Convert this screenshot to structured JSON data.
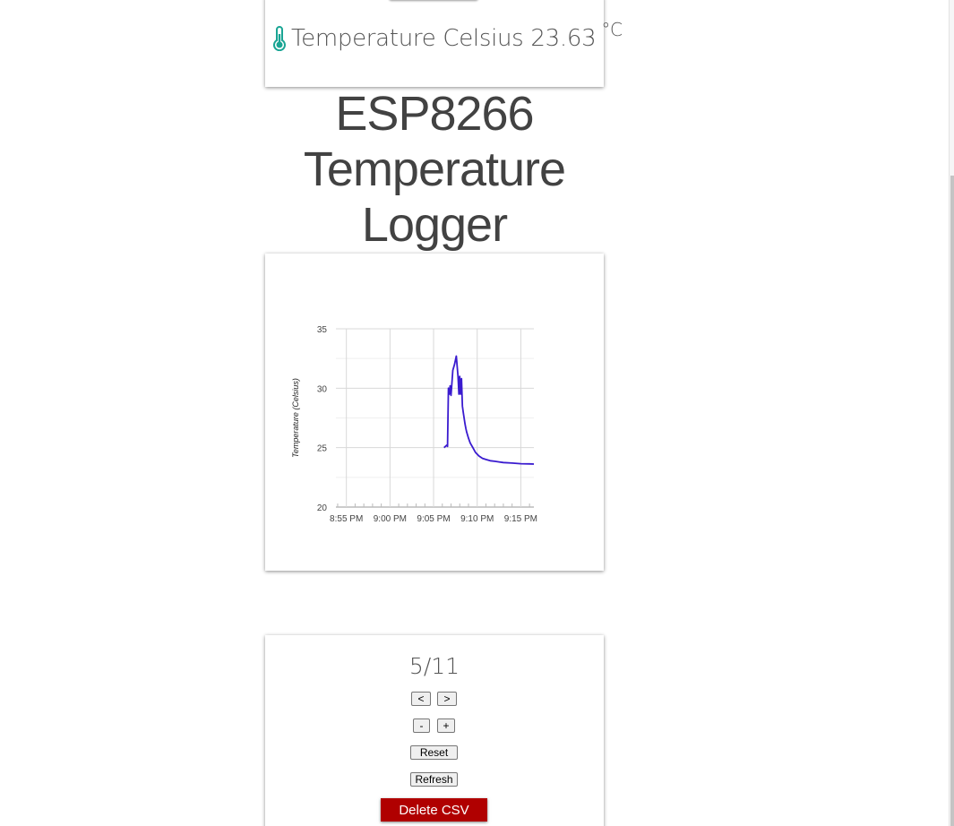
{
  "temperature": {
    "label": "Temperature Celsius",
    "value": "23.63",
    "unit": "°C",
    "icon": "thermometer-icon",
    "icon_color": "#1aa594"
  },
  "title": "ESP8266 Temperature Logger",
  "chart_data": {
    "type": "line",
    "title": "",
    "xlabel": "",
    "ylabel": "Temperature (Celsius)",
    "ylim": [
      20,
      35
    ],
    "yticks": [
      "20",
      "25",
      "30",
      "35"
    ],
    "xticks": [
      "8:55 PM",
      "9:00 PM",
      "9:05 PM",
      "9:10 PM",
      "9:15 PM"
    ],
    "xlim_minutes": [
      -1.2,
      21.5
    ],
    "grid": true,
    "series_color": "#3a1bcf",
    "series": [
      {
        "x_minutes": [
          11.2,
          11.5,
          11.6,
          11.7,
          11.8,
          11.9,
          12.0,
          12.2,
          12.4,
          12.6,
          12.8,
          12.9,
          13.0,
          13.1,
          13.2,
          13.3,
          13.4,
          13.5,
          13.6,
          13.7,
          13.8,
          14.0,
          14.2,
          14.5,
          14.8,
          15.2,
          15.6,
          16.0,
          16.5,
          17.0,
          17.5,
          18.0,
          19.0,
          20.0,
          21.0,
          21.5
        ],
        "y": [
          25.0,
          25.2,
          25.1,
          30.0,
          29.5,
          30.2,
          29.4,
          31.5,
          32.0,
          32.7,
          31.0,
          29.5,
          31.0,
          29.5,
          30.8,
          28.5,
          28.0,
          27.5,
          27.0,
          26.6,
          26.3,
          25.8,
          25.4,
          25.0,
          24.6,
          24.3,
          24.1,
          24.0,
          23.9,
          23.85,
          23.8,
          23.75,
          23.7,
          23.65,
          23.63,
          23.62
        ]
      }
    ]
  },
  "controls": {
    "counter": "5/11",
    "prev_label": "<",
    "next_label": ">",
    "zoom_out_label": "-",
    "zoom_in_label": "+",
    "reset_label": "Reset",
    "refresh_label": "Refresh",
    "delete_label": "Delete CSV",
    "delete_color": "#b00000"
  }
}
